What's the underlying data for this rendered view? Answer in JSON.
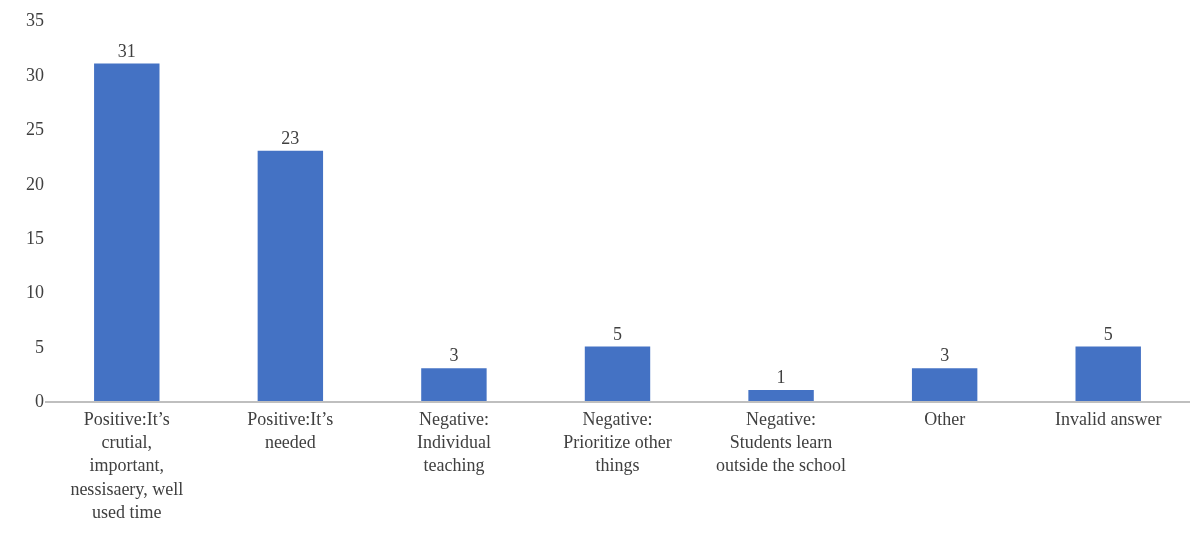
{
  "chart_data": {
    "type": "bar",
    "categories": [
      "Positive:It’s\ncrutial,\nimportant,\nnessisaery, well\nused time",
      "Positive:It’s\nneeded",
      "Negative:\nIndividual\nteaching",
      "Negative:\nPrioritize other\nthings",
      "Negative:\nStudents learn\noutside the school",
      "Other",
      "Invalid answer"
    ],
    "values": [
      31,
      23,
      3,
      5,
      1,
      3,
      5
    ],
    "color": "#4472c4",
    "ylim": [
      0,
      35
    ],
    "yticks": [
      0,
      5,
      10,
      15,
      20,
      25,
      30,
      35
    ],
    "data_labels": true
  }
}
